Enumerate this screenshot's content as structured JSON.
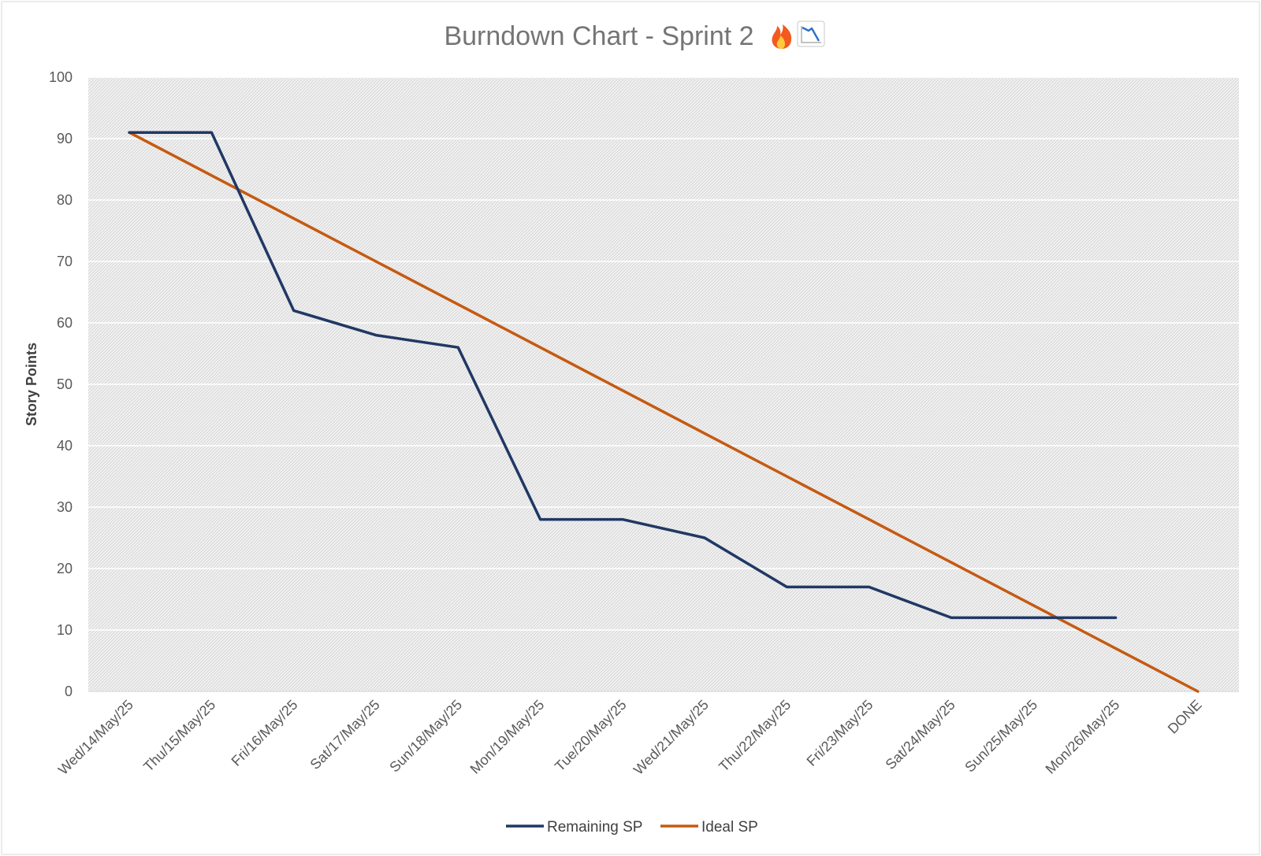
{
  "chart_data": {
    "type": "line",
    "title": "Burndown Chart - Sprint 2 🔥📉",
    "title_text": "Burndown Chart - Sprint 2",
    "title_emoji": [
      "fire-icon",
      "chart-decreasing-icon"
    ],
    "xlabel": "",
    "ylabel": "Story Points",
    "ylim": [
      0,
      100
    ],
    "yticks": [
      0,
      10,
      20,
      30,
      40,
      50,
      60,
      70,
      80,
      90,
      100
    ],
    "categories": [
      "Wed/14/May/25",
      "Thu/15/May/25",
      "Fri/16/May/25",
      "Sat/17/May/25",
      "Sun/18/May/25",
      "Mon/19/May/25",
      "Tue/20/May/25",
      "Wed/21/May/25",
      "Thu/22/May/25",
      "Fri/23/May/25",
      "Sat/24/May/25",
      "Sun/25/May/25",
      "Mon/26/May/25",
      "DONE"
    ],
    "series": [
      {
        "name": "Remaining SP",
        "color": "#203864",
        "values": [
          91,
          91,
          62,
          58,
          56,
          28,
          28,
          25,
          17,
          17,
          12,
          12,
          12,
          null
        ]
      },
      {
        "name": "Ideal SP",
        "color": "#C55A11",
        "values": [
          91,
          84,
          77,
          70,
          63,
          56,
          49,
          42,
          35,
          28,
          21,
          14,
          7,
          0
        ]
      }
    ],
    "grid": true,
    "legend": "bottom",
    "plot_background": "#f2f2f2"
  }
}
